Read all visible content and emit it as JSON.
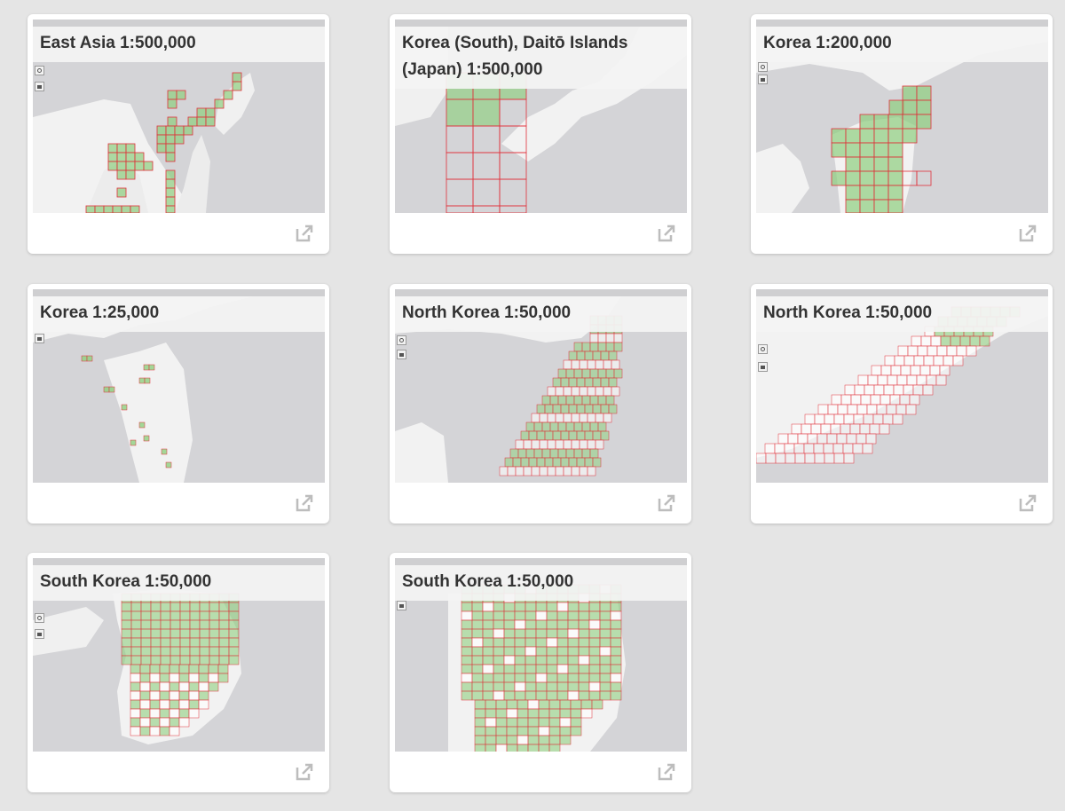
{
  "cards": [
    {
      "title": "East Asia 1:500,000"
    },
    {
      "title": "Korea (South), Daitō Islands (Japan) 1:500,000"
    },
    {
      "title": "Korea 1:200,000"
    },
    {
      "title": "Korea 1:25,000"
    },
    {
      "title": "North Korea 1:50,000"
    },
    {
      "title": "North Korea 1:50,000"
    },
    {
      "title": "South Korea 1:50,000"
    },
    {
      "title": "South Korea 1:50,000"
    }
  ],
  "colors": {
    "page_background": "#e5e5e5",
    "card_background": "#ffffff",
    "map_land": "#f2f2f2",
    "map_water": "#d4d4d7",
    "grid_cell_fill": "#8fcf7f",
    "grid_cell_stroke": "#e0303a",
    "title_text": "#333333",
    "icon": "#bdbdbd"
  },
  "icons": {
    "open": "external-link-icon",
    "map_locate": "locate-icon",
    "map_home": "home-icon"
  }
}
